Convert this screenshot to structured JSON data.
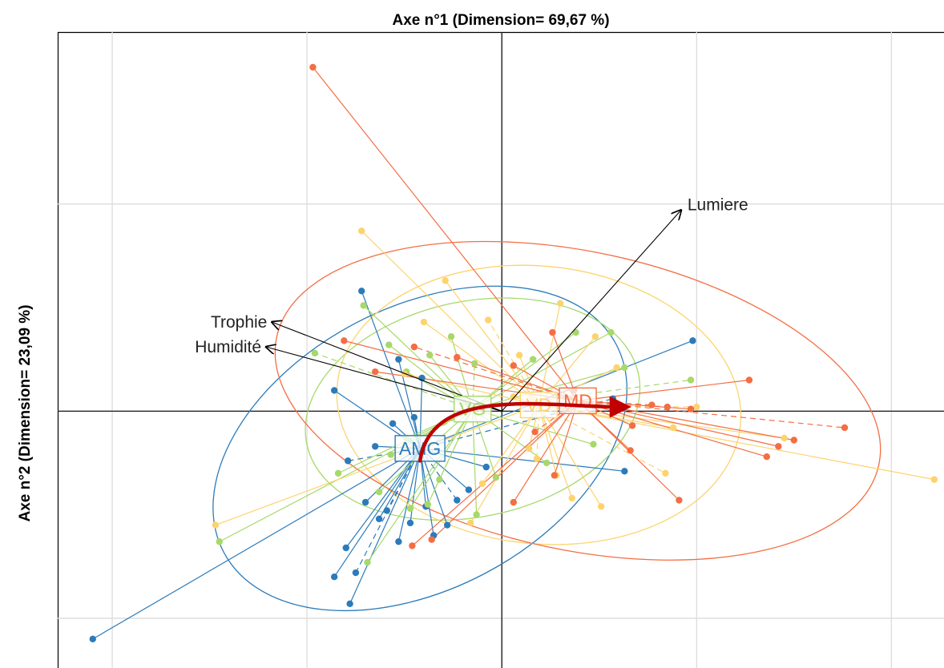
{
  "chart_data": {
    "type": "scatter",
    "title": "Axe n°1 (Dimension= 69,67 %)",
    "xlabel": "",
    "ylabel": "Axe n°2 (Dimension= 23,09 %)",
    "xlim": [
      -2.28,
      2.27
    ],
    "ylim": [
      -1.24,
      1.83
    ],
    "grid": true,
    "x_gridlines": [
      -2,
      -1,
      0,
      1,
      2
    ],
    "y_gridlines": [
      -1,
      0,
      1
    ],
    "colors": {
      "AMG": "#2b7bba",
      "VG": "#a6d96a",
      "VD": "#fdd36d",
      "MD": "#f46d43",
      "arrow": "#000000",
      "trajectory": "#c00000",
      "grid": "#dcdcdc"
    },
    "groups": [
      {
        "name": "AMG",
        "center": [
          -0.42,
          -0.18
        ],
        "ellipse": {
          "rx": 1.14,
          "ry": 0.68,
          "angle_deg": 28
        },
        "points": [
          [
            -2.1,
            -1.1
          ],
          [
            -0.86,
            -0.8
          ],
          [
            -0.8,
            -0.66
          ],
          [
            -0.75,
            -0.78
          ],
          [
            -0.78,
            -0.93
          ],
          [
            -0.53,
            -0.63
          ],
          [
            -0.63,
            -0.52
          ],
          [
            -0.7,
            -0.44
          ],
          [
            -0.59,
            -0.48
          ],
          [
            -0.47,
            -0.54
          ],
          [
            -0.39,
            -0.46
          ],
          [
            -0.35,
            -0.6
          ],
          [
            -0.28,
            -0.55
          ],
          [
            -0.23,
            -0.43
          ],
          [
            -0.17,
            -0.38
          ],
          [
            -0.08,
            -0.27
          ],
          [
            0.63,
            -0.29
          ],
          [
            0.98,
            0.34
          ],
          [
            0.57,
            0.06
          ],
          [
            -0.72,
            0.58
          ],
          [
            -0.53,
            0.25
          ],
          [
            -0.41,
            0.16
          ],
          [
            -0.86,
            0.1
          ],
          [
            -0.79,
            -0.24
          ],
          [
            -0.65,
            -0.17
          ],
          [
            -0.56,
            -0.06
          ],
          [
            -0.45,
            -0.03
          ]
        ]
      },
      {
        "name": "VG",
        "center": [
          -0.15,
          0.01
        ],
        "ellipse": {
          "rx": 0.87,
          "ry": 0.52,
          "angle_deg": 12
        },
        "points": [
          [
            -1.45,
            -0.63
          ],
          [
            -0.69,
            -0.73
          ],
          [
            -0.71,
            0.51
          ],
          [
            -0.96,
            0.28
          ],
          [
            -0.58,
            0.32
          ],
          [
            -0.49,
            0.19
          ],
          [
            -0.37,
            0.27
          ],
          [
            -0.26,
            0.36
          ],
          [
            -0.14,
            0.23
          ],
          [
            0.16,
            0.25
          ],
          [
            0.38,
            0.38
          ],
          [
            0.56,
            0.38
          ],
          [
            0.63,
            0.21
          ],
          [
            0.97,
            0.15
          ],
          [
            0.47,
            -0.16
          ],
          [
            0.23,
            -0.25
          ],
          [
            -0.03,
            -0.32
          ],
          [
            -0.38,
            -0.45
          ],
          [
            -0.57,
            -0.21
          ],
          [
            -0.84,
            -0.3
          ],
          [
            -0.63,
            -0.39
          ],
          [
            -0.47,
            -0.47
          ],
          [
            -0.13,
            -0.5
          ],
          [
            -0.32,
            -0.33
          ],
          [
            -0.49,
            -0.13
          ]
        ]
      },
      {
        "name": "VD",
        "center": [
          0.19,
          0.03
        ],
        "ellipse": {
          "rx": 1.04,
          "ry": 0.67,
          "angle_deg": -6
        },
        "points": [
          [
            -1.47,
            -0.55
          ],
          [
            -0.72,
            0.87
          ],
          [
            -0.29,
            0.63
          ],
          [
            -0.07,
            0.44
          ],
          [
            0.09,
            0.27
          ],
          [
            0.3,
            0.52
          ],
          [
            0.48,
            0.36
          ],
          [
            0.59,
            0.21
          ],
          [
            1.0,
            0.02
          ],
          [
            1.45,
            -0.13
          ],
          [
            2.22,
            -0.33
          ],
          [
            0.36,
            -0.42
          ],
          [
            0.51,
            -0.46
          ],
          [
            0.84,
            -0.3
          ],
          [
            0.28,
            -0.31
          ],
          [
            0.14,
            -0.18
          ],
          [
            -0.1,
            -0.35
          ],
          [
            -0.16,
            -0.54
          ],
          [
            0.18,
            -0.23
          ],
          [
            0.88,
            -0.08
          ],
          [
            0.06,
            0.07
          ],
          [
            -0.5,
            0.18
          ],
          [
            -0.4,
            0.43
          ]
        ]
      },
      {
        "name": "MD",
        "center": [
          0.39,
          0.05
        ],
        "ellipse": {
          "rx": 1.58,
          "ry": 0.72,
          "angle_deg": -12
        },
        "points": [
          [
            -0.97,
            1.66
          ],
          [
            -0.81,
            0.34
          ],
          [
            -0.65,
            0.19
          ],
          [
            -0.45,
            0.31
          ],
          [
            -0.23,
            0.26
          ],
          [
            0.06,
            0.22
          ],
          [
            0.26,
            0.38
          ],
          [
            0.37,
            0.1
          ],
          [
            0.77,
            0.03
          ],
          [
            0.97,
            0.01
          ],
          [
            1.27,
            0.15
          ],
          [
            1.42,
            -0.17
          ],
          [
            1.5,
            -0.14
          ],
          [
            1.76,
            -0.08
          ],
          [
            1.36,
            -0.22
          ],
          [
            0.91,
            -0.43
          ],
          [
            0.66,
            -0.19
          ],
          [
            0.67,
            -0.07
          ],
          [
            0.85,
            0.02
          ],
          [
            -0.46,
            -0.65
          ],
          [
            -0.36,
            -0.62
          ],
          [
            0.06,
            -0.44
          ],
          [
            0.27,
            -0.31
          ],
          [
            0.17,
            -0.1
          ]
        ]
      }
    ],
    "variables": [
      {
        "name": "Lumiere",
        "x": 0.92,
        "y": 0.97
      },
      {
        "name": "Trophie",
        "x": -1.18,
        "y": 0.43
      },
      {
        "name": "Humidité",
        "x": -1.21,
        "y": 0.31
      }
    ],
    "trajectory": [
      [
        -0.42,
        -0.24
      ],
      [
        -0.36,
        0.13
      ],
      [
        0.22,
        0.02
      ],
      [
        0.62,
        0.02
      ]
    ]
  }
}
